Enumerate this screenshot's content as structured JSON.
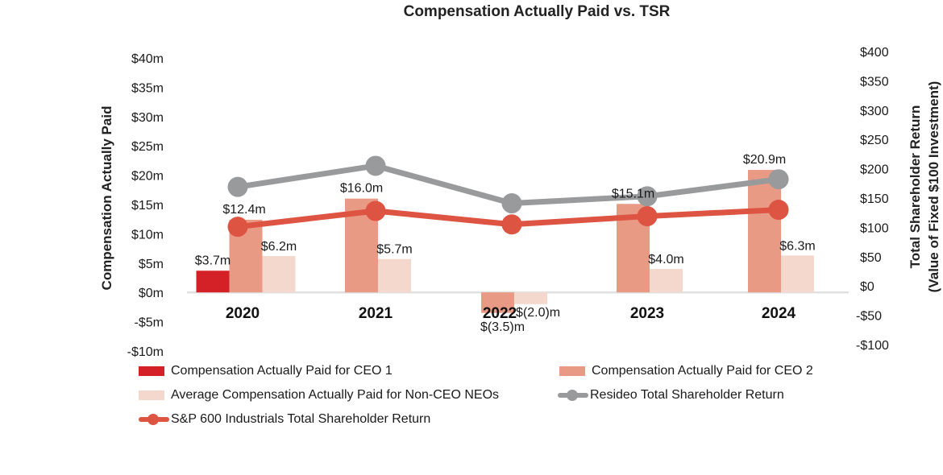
{
  "chart_data": {
    "type": "bar",
    "title": "Compensation Actually Paid vs. TSR",
    "categories": [
      "2020",
      "2021",
      "2022",
      "2023",
      "2024"
    ],
    "left_axis": {
      "label": "Compensation Actually Paid",
      "range": [
        -10,
        40
      ],
      "ticks": [
        40,
        35,
        30,
        25,
        20,
        15,
        10,
        5,
        0,
        -5,
        -10
      ],
      "tick_labels": [
        "$40m",
        "$35m",
        "$30m",
        "$25m",
        "$20m",
        "$15m",
        "$10m",
        "$5m",
        "$0m",
        "-$5m",
        "-$10m"
      ]
    },
    "right_axis": {
      "label_line1": "Total Shareholder Return",
      "label_line2": "(Value of Fixed $100 Investment)",
      "range": [
        -100,
        400
      ],
      "ticks": [
        400,
        350,
        300,
        250,
        200,
        150,
        100,
        50,
        0,
        -50,
        -100
      ],
      "tick_labels": [
        "$400",
        "$350",
        "$300",
        "$250",
        "$200",
        "$150",
        "$100",
        "$50",
        "$0",
        "-$50",
        "-$100"
      ]
    },
    "bar_series": [
      {
        "name": "Compensation Actually Paid for CEO 1",
        "color": "#d42027",
        "values": [
          3.7,
          null,
          null,
          null,
          null
        ],
        "labels": [
          "$3.7m",
          "",
          "",
          "",
          ""
        ]
      },
      {
        "name": "Compensation Actually Paid for CEO 2",
        "color": "#e89a84",
        "values": [
          12.4,
          16.0,
          -3.5,
          15.1,
          20.9
        ],
        "labels": [
          "$12.4m",
          "$16.0m",
          "$(3.5)m",
          "$15.1m",
          "$20.9m"
        ]
      },
      {
        "name": "Average Compensation Actually Paid for Non-CEO NEOs",
        "color": "#f4d8ce",
        "values": [
          6.2,
          5.7,
          -2.0,
          4.0,
          6.3
        ],
        "labels": [
          "$6.2m",
          "$5.7m",
          "$(2.0)m",
          "$4.0m",
          "$6.3m"
        ]
      }
    ],
    "line_series": [
      {
        "name": "Resideo Total Shareholder Return",
        "color": "#999a9c",
        "axis": "right",
        "values": [
          169,
          205,
          141,
          153,
          182
        ]
      },
      {
        "name": "S&P 600 Industrials Total Shareholder Return",
        "color": "#de5443",
        "axis": "right",
        "values": [
          101,
          128,
          105,
          119,
          130
        ]
      }
    ],
    "grid": false,
    "legend_position": "bottom"
  },
  "legend": {
    "items": [
      {
        "label": "Compensation Actually Paid for CEO 1",
        "kind": "bar",
        "color": "#d42027"
      },
      {
        "label": "Compensation Actually Paid for CEO 2",
        "kind": "bar",
        "color": "#e89a84"
      },
      {
        "label": "Average Compensation Actually Paid for Non-CEO NEOs",
        "kind": "bar",
        "color": "#f4d8ce"
      },
      {
        "label": "Resideo Total Shareholder Return",
        "kind": "line",
        "color": "#999a9c"
      },
      {
        "label": "S&P 600 Industrials Total Shareholder Return",
        "kind": "line",
        "color": "#de5443"
      }
    ]
  }
}
